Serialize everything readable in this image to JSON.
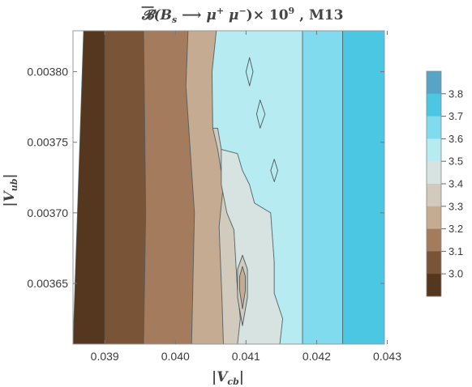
{
  "chart_data": {
    "type": "contour",
    "title": "𝓑̄(B_s ⟶ μ⁺ μ⁻)× 10⁹ , M13",
    "title_parts": {
      "symbol": "𝓑",
      "open": "(B",
      "sub_s": "s",
      "arrow": " ⟶ ",
      "mu1": "μ",
      "sup_plus": "+",
      "mu2": " μ",
      "sup_minus": "−",
      "close": ")× 10",
      "sup_9": "9",
      "tail": " , M13"
    },
    "xlabel": "|V_cb|",
    "xlabel_parts": {
      "open": "|V",
      "sub": "cb",
      "close": "|"
    },
    "ylabel": "|V_ub|",
    "ylabel_parts": {
      "open": "|V",
      "sub": "ub",
      "close": "|"
    },
    "xlim": [
      0.03855,
      0.04296
    ],
    "ylim": [
      0.003607,
      0.003829
    ],
    "x_ticks": [
      {
        "value": 0.039,
        "label": "0.039"
      },
      {
        "value": 0.04,
        "label": "0.040"
      },
      {
        "value": 0.041,
        "label": "0.041"
      },
      {
        "value": 0.042,
        "label": "0.042"
      },
      {
        "value": 0.043,
        "label": "0.043"
      }
    ],
    "y_ticks": [
      {
        "value": 0.00365,
        "label": "0.00365"
      },
      {
        "value": 0.0037,
        "label": "0.00370"
      },
      {
        "value": 0.00375,
        "label": "0.00375"
      },
      {
        "value": 0.0038,
        "label": "0.00380"
      }
    ],
    "legend": {
      "placement": "right",
      "levels": [
        {
          "label": "3.8",
          "color": "#58a4c7"
        },
        {
          "label": "3.7",
          "color": "#4cc7e3"
        },
        {
          "label": "3.6",
          "color": "#80dbef"
        },
        {
          "label": "3.5",
          "color": "#b6ebf2"
        },
        {
          "label": "3.4",
          "color": "#d6e3e0"
        },
        {
          "label": "3.3",
          "color": "#d2cbbd"
        },
        {
          "label": "3.2",
          "color": "#c5ab92"
        },
        {
          "label": "3.1",
          "color": "#a47c5d"
        },
        {
          "label": "3.0",
          "color": "#7a5437"
        },
        {
          "label": "",
          "color": "#55361e"
        }
      ]
    },
    "bands": [
      {
        "name": "band-below-3.0",
        "color": "#55361e",
        "points": [
          [
            0.03855,
            0.003607
          ],
          [
            0.039,
            0.003607
          ],
          [
            0.039,
            0.003829
          ],
          [
            0.0387,
            0.003829
          ],
          [
            0.03855,
            0.003607
          ]
        ]
      },
      {
        "name": "band-3.0-3.1",
        "color": "#7a5437",
        "points": [
          [
            0.039,
            0.003607
          ],
          [
            0.03955,
            0.003607
          ],
          [
            0.03958,
            0.0037
          ],
          [
            0.03955,
            0.003829
          ],
          [
            0.039,
            0.003829
          ]
        ]
      },
      {
        "name": "band-3.1-3.2",
        "color": "#a47c5d",
        "points": [
          [
            0.03955,
            0.003607
          ],
          [
            0.04023,
            0.003607
          ],
          [
            0.04027,
            0.0037
          ],
          [
            0.04015,
            0.00379
          ],
          [
            0.04018,
            0.003829
          ],
          [
            0.03955,
            0.003829
          ],
          [
            0.03958,
            0.0037
          ]
        ]
      },
      {
        "name": "band-3.2-3.3",
        "color": "#c5ab92",
        "points": [
          [
            0.04023,
            0.003607
          ],
          [
            0.04068,
            0.003607
          ],
          [
            0.04066,
            0.00364
          ],
          [
            0.04062,
            0.00369
          ],
          [
            0.04068,
            0.00372
          ],
          [
            0.0406,
            0.003745
          ],
          [
            0.04053,
            0.00376
          ],
          [
            0.04052,
            0.0038
          ],
          [
            0.04058,
            0.003829
          ],
          [
            0.04018,
            0.003829
          ],
          [
            0.04015,
            0.00379
          ],
          [
            0.04027,
            0.0037
          ]
        ]
      },
      {
        "name": "band-3.3-3.4",
        "color": "#d2cbbd",
        "points": [
          [
            0.04068,
            0.003607
          ],
          [
            0.04088,
            0.003607
          ],
          [
            0.04092,
            0.003625
          ],
          [
            0.04088,
            0.003645
          ],
          [
            0.04085,
            0.00367
          ],
          [
            0.04083,
            0.003688
          ],
          [
            0.04073,
            0.0037
          ],
          [
            0.04065,
            0.00372
          ],
          [
            0.04065,
            0.003745
          ],
          [
            0.0406,
            0.00376
          ],
          [
            0.04053,
            0.00376
          ],
          [
            0.0406,
            0.003745
          ],
          [
            0.04068,
            0.00372
          ],
          [
            0.04062,
            0.00369
          ],
          [
            0.04066,
            0.00364
          ]
        ]
      },
      {
        "name": "band-3.4-3.5",
        "color": "#d6e3e0",
        "points": [
          [
            0.04088,
            0.003607
          ],
          [
            0.04148,
            0.003607
          ],
          [
            0.04152,
            0.003625
          ],
          [
            0.0414,
            0.003643
          ],
          [
            0.0414,
            0.003665
          ],
          [
            0.04135,
            0.0037
          ],
          [
            0.04112,
            0.003707
          ],
          [
            0.04105,
            0.00372
          ],
          [
            0.04095,
            0.00373
          ],
          [
            0.04088,
            0.003742
          ],
          [
            0.04065,
            0.003745
          ],
          [
            0.04065,
            0.00372
          ],
          [
            0.04073,
            0.0037
          ],
          [
            0.04083,
            0.003688
          ],
          [
            0.04085,
            0.00367
          ],
          [
            0.04088,
            0.003645
          ],
          [
            0.04092,
            0.003625
          ]
        ]
      },
      {
        "name": "band-3.5-3.6",
        "color": "#b6ebf2",
        "points": [
          [
            0.04148,
            0.003607
          ],
          [
            0.0418,
            0.003607
          ],
          [
            0.0418,
            0.003829
          ],
          [
            0.04058,
            0.003829
          ],
          [
            0.04052,
            0.0038
          ],
          [
            0.04053,
            0.00376
          ],
          [
            0.0406,
            0.00376
          ],
          [
            0.04065,
            0.003745
          ],
          [
            0.04088,
            0.003742
          ],
          [
            0.04095,
            0.00373
          ],
          [
            0.04105,
            0.00372
          ],
          [
            0.04112,
            0.003707
          ],
          [
            0.04135,
            0.0037
          ],
          [
            0.0414,
            0.003665
          ],
          [
            0.0414,
            0.003643
          ],
          [
            0.04152,
            0.003625
          ]
        ]
      },
      {
        "name": "band-3.6-3.7",
        "color": "#80dbef",
        "points": [
          [
            0.0418,
            0.003607
          ],
          [
            0.04237,
            0.003607
          ],
          [
            0.04237,
            0.003829
          ],
          [
            0.0418,
            0.003829
          ]
        ]
      },
      {
        "name": "band-3.7-3.8",
        "color": "#4cc7e3",
        "points": [
          [
            0.04237,
            0.003607
          ],
          [
            0.04296,
            0.003607
          ],
          [
            0.04296,
            0.003829
          ],
          [
            0.04237,
            0.003829
          ]
        ]
      }
    ],
    "islands": [
      {
        "name": "island-3.5-a",
        "color": "#b6ebf2",
        "points": [
          [
            0.041,
            0.0038
          ],
          [
            0.04105,
            0.00381
          ],
          [
            0.0411,
            0.0038
          ],
          [
            0.04105,
            0.00379
          ]
        ]
      },
      {
        "name": "island-3.5-b",
        "color": "#b6ebf2",
        "points": [
          [
            0.04115,
            0.00377
          ],
          [
            0.0412,
            0.00378
          ],
          [
            0.04127,
            0.00377
          ],
          [
            0.0412,
            0.00376
          ]
        ]
      },
      {
        "name": "island-3.5-c",
        "color": "#b6ebf2",
        "points": [
          [
            0.04135,
            0.00373
          ],
          [
            0.0414,
            0.003738
          ],
          [
            0.04145,
            0.00373
          ],
          [
            0.0414,
            0.003722
          ]
        ]
      },
      {
        "name": "island-3.3-a",
        "color": "#d2cbbd",
        "points": [
          [
            0.04095,
            0.00362
          ],
          [
            0.04102,
            0.00364
          ],
          [
            0.04102,
            0.00366
          ],
          [
            0.04095,
            0.00367
          ],
          [
            0.04088,
            0.00366
          ],
          [
            0.04088,
            0.00364
          ]
        ]
      },
      {
        "name": "island-3.2-a",
        "color": "#c5ab92",
        "points": [
          [
            0.04095,
            0.003632
          ],
          [
            0.04099,
            0.003645
          ],
          [
            0.04099,
            0.003655
          ],
          [
            0.04095,
            0.003662
          ],
          [
            0.04091,
            0.003655
          ],
          [
            0.04091,
            0.003645
          ]
        ]
      }
    ]
  }
}
